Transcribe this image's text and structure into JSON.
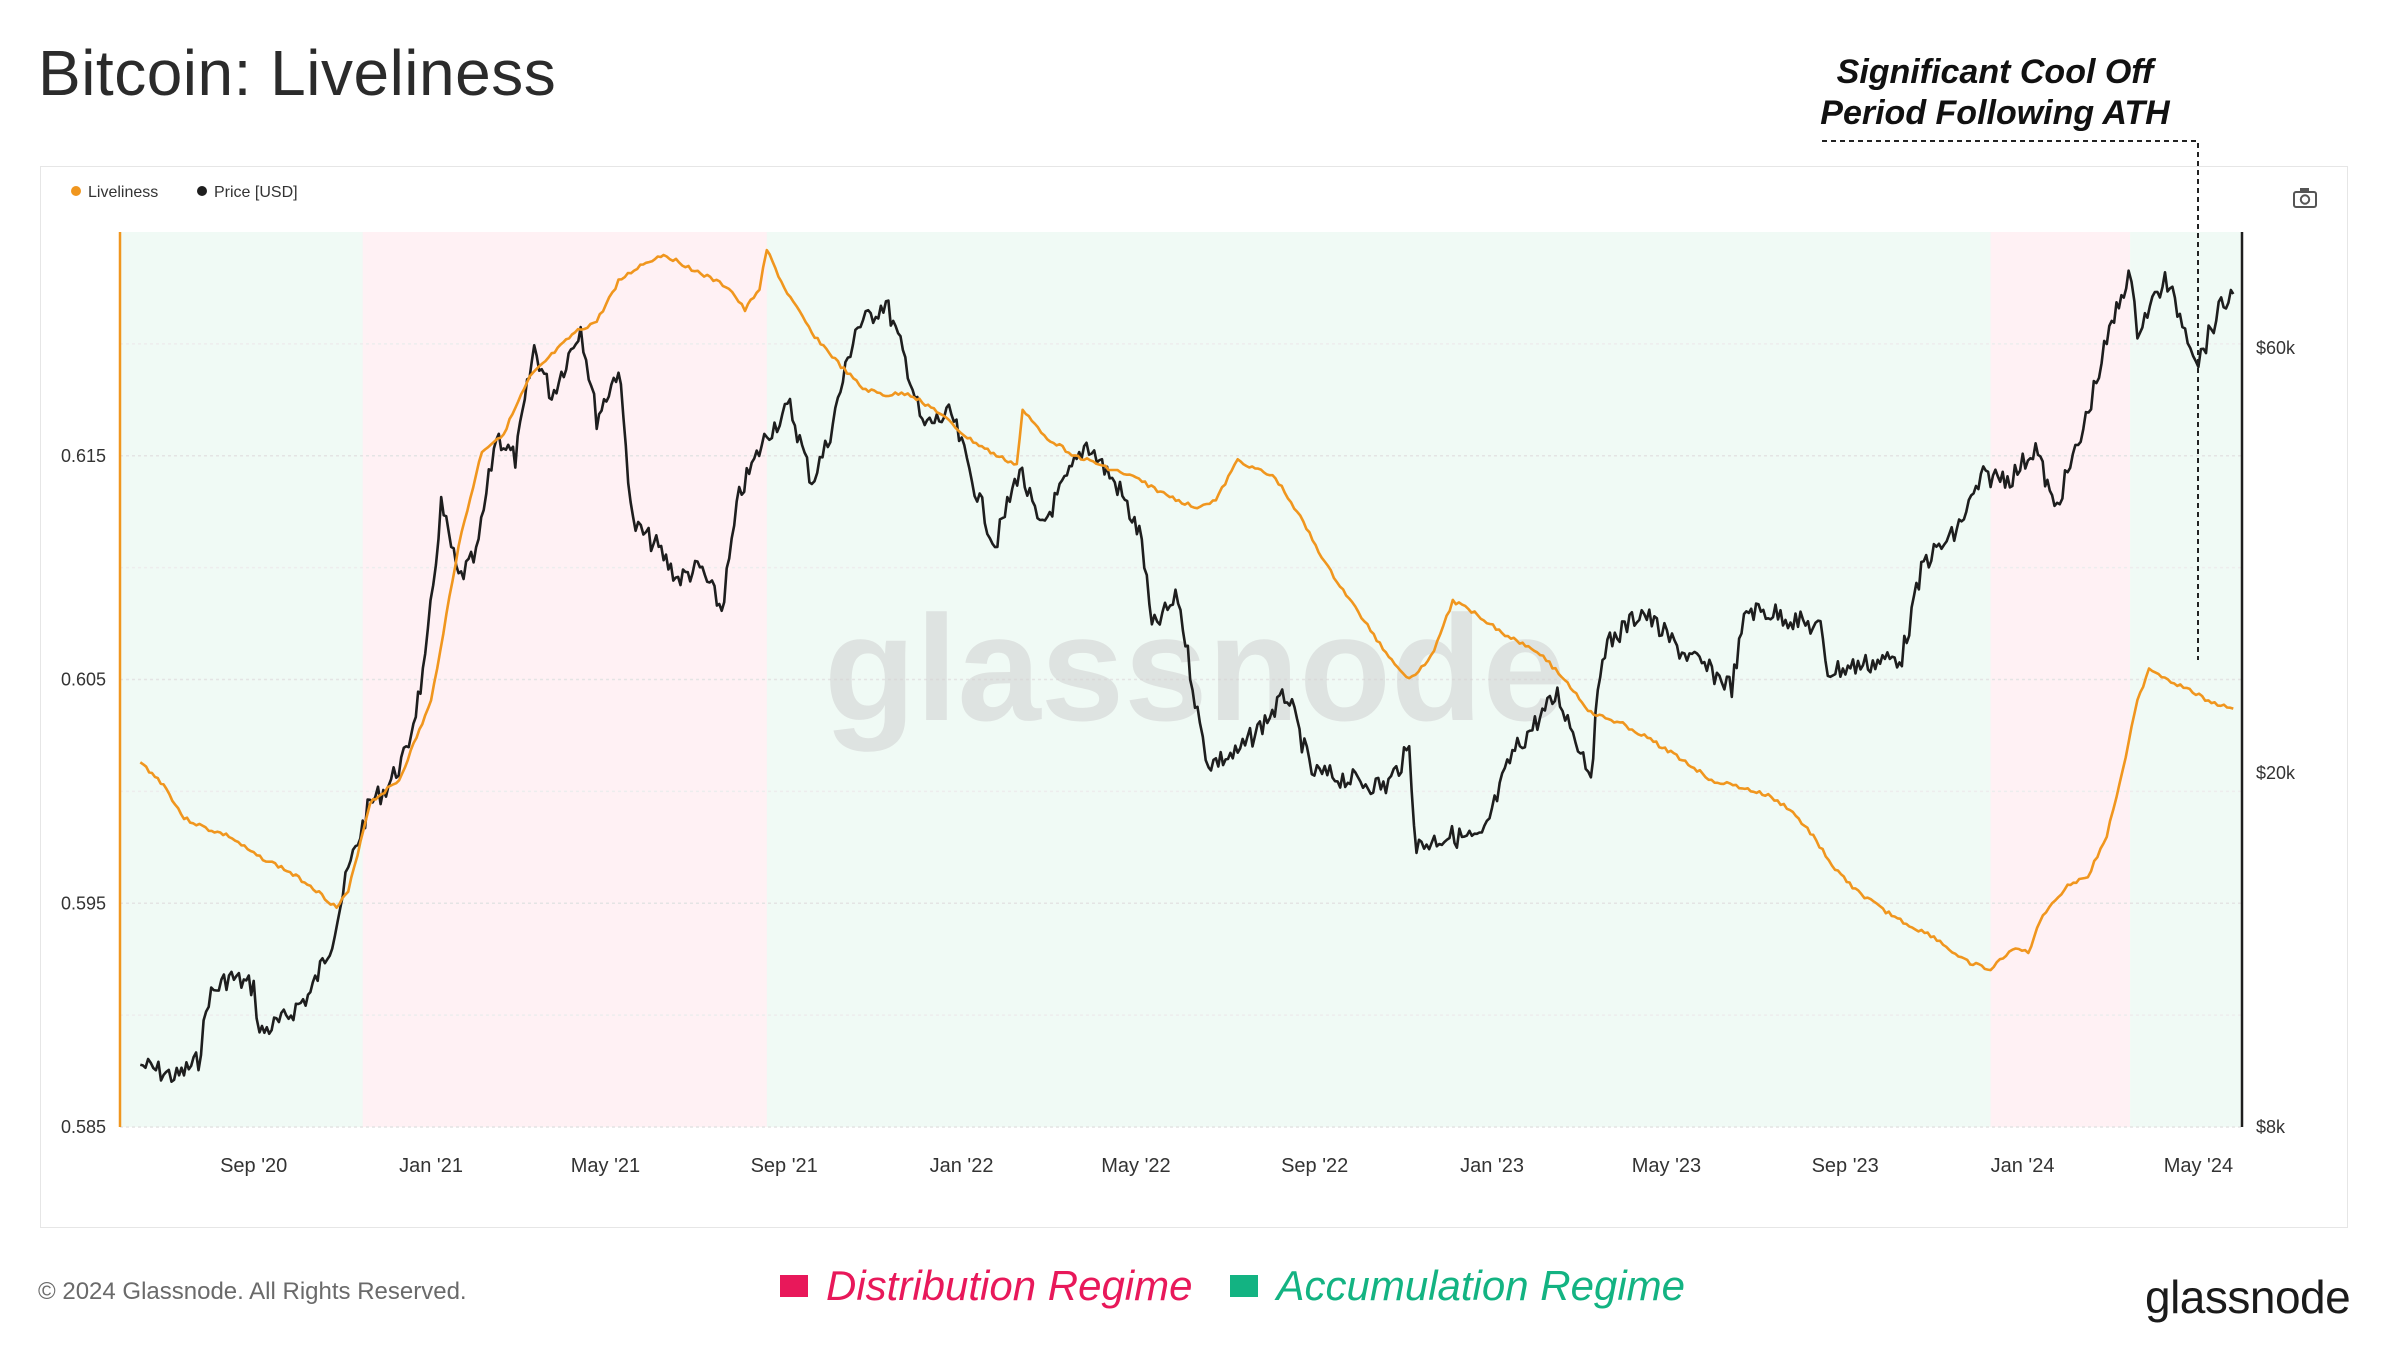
{
  "page": {
    "title": "Bitcoin: Liveliness",
    "annotation": [
      "Significant Cool Off",
      "Period Following ATH"
    ],
    "copyright": "© 2024 Glassnode. All Rights Reserved.",
    "brand": "glassnode",
    "watermark": "glassnode",
    "camera_icon": "camera-icon"
  },
  "legend_bottom": {
    "distribution": {
      "label": "Distribution Regime",
      "color": "#e8185a"
    },
    "accumulation": {
      "label": "Accumulation Regime",
      "color": "#13b382"
    }
  },
  "chart_data": {
    "type": "line",
    "title": "Bitcoin: Liveliness",
    "legend": [
      {
        "name": "Liveliness",
        "color": "#f0961e"
      },
      {
        "name": "Price [USD]",
        "color": "#1e1e1e"
      }
    ],
    "legend_position": "top-left",
    "x_tick_labels": [
      "Sep '20",
      "Jan '21",
      "May '21",
      "Sep '21",
      "Jan '22",
      "May '22",
      "Sep '22",
      "Jan '23",
      "May '23",
      "Sep '23",
      "Jan '24",
      "May '24"
    ],
    "x_range": [
      "2020-06-01",
      "2024-05-31"
    ],
    "y_left": {
      "label": "",
      "ticks": [
        0.585,
        0.595,
        0.605,
        0.615
      ],
      "tick_labels": [
        "0.585",
        "0.595",
        "0.605",
        "0.615"
      ],
      "range": [
        0.585,
        0.625
      ]
    },
    "y_right": {
      "label": "",
      "scale": "log",
      "ticks": [
        8000,
        20000,
        60000
      ],
      "tick_labels": [
        "$8k",
        "$20k",
        "$60k"
      ],
      "range": [
        8000,
        81000
      ]
    },
    "regimes": [
      {
        "type": "accumulation",
        "start": "2020-06-01",
        "end": "2020-11-15"
      },
      {
        "type": "distribution",
        "start": "2020-11-15",
        "end": "2021-08-20"
      },
      {
        "type": "accumulation",
        "start": "2021-08-20",
        "end": "2023-12-10"
      },
      {
        "type": "distribution",
        "start": "2023-12-10",
        "end": "2024-03-15"
      },
      {
        "type": "accumulation",
        "start": "2024-03-15",
        "end": "2024-05-31"
      }
    ],
    "series": [
      {
        "name": "Liveliness",
        "axis": "left",
        "points": [
          [
            "2020-06-15",
            0.6013
          ],
          [
            "2020-07-01",
            0.6003
          ],
          [
            "2020-07-15",
            0.5988
          ],
          [
            "2020-08-01",
            0.5983
          ],
          [
            "2020-08-15",
            0.598
          ],
          [
            "2020-09-01",
            0.5972
          ],
          [
            "2020-09-20",
            0.5966
          ],
          [
            "2020-10-10",
            0.5958
          ],
          [
            "2020-10-28",
            0.5948
          ],
          [
            "2020-11-05",
            0.5955
          ],
          [
            "2020-11-20",
            0.5995
          ],
          [
            "2020-12-10",
            0.6005
          ],
          [
            "2021-01-01",
            0.604
          ],
          [
            "2021-01-20",
            0.611
          ],
          [
            "2021-02-05",
            0.6152
          ],
          [
            "2021-02-20",
            0.616
          ],
          [
            "2021-03-10",
            0.6185
          ],
          [
            "2021-03-25",
            0.6195
          ],
          [
            "2021-04-10",
            0.6205
          ],
          [
            "2021-04-25",
            0.621
          ],
          [
            "2021-05-10",
            0.6228
          ],
          [
            "2021-05-25",
            0.6235
          ],
          [
            "2021-06-10",
            0.624
          ],
          [
            "2021-06-25",
            0.6235
          ],
          [
            "2021-07-10",
            0.623
          ],
          [
            "2021-07-25",
            0.6225
          ],
          [
            "2021-08-05",
            0.6215
          ],
          [
            "2021-08-15",
            0.6225
          ],
          [
            "2021-08-20",
            0.6242
          ],
          [
            "2021-09-01",
            0.6225
          ],
          [
            "2021-09-20",
            0.6205
          ],
          [
            "2021-10-10",
            0.619
          ],
          [
            "2021-10-25",
            0.618
          ],
          [
            "2021-11-10",
            0.6177
          ],
          [
            "2021-11-25",
            0.6178
          ],
          [
            "2021-12-15",
            0.617
          ],
          [
            "2022-01-05",
            0.6158
          ],
          [
            "2022-01-25",
            0.615
          ],
          [
            "2022-02-08",
            0.6146
          ],
          [
            "2022-02-12",
            0.617
          ],
          [
            "2022-03-01",
            0.6158
          ],
          [
            "2022-03-20",
            0.615
          ],
          [
            "2022-04-10",
            0.6145
          ],
          [
            "2022-05-01",
            0.614
          ],
          [
            "2022-05-20",
            0.6133
          ],
          [
            "2022-06-10",
            0.6127
          ],
          [
            "2022-06-25",
            0.613
          ],
          [
            "2022-07-10",
            0.6148
          ],
          [
            "2022-08-05",
            0.614
          ],
          [
            "2022-08-20",
            0.6125
          ],
          [
            "2022-09-10",
            0.61
          ],
          [
            "2022-10-01",
            0.608
          ],
          [
            "2022-10-20",
            0.6062
          ],
          [
            "2022-11-05",
            0.605
          ],
          [
            "2022-11-20",
            0.606
          ],
          [
            "2022-12-05",
            0.6085
          ],
          [
            "2022-12-20",
            0.608
          ],
          [
            "2023-01-10",
            0.607
          ],
          [
            "2023-02-01",
            0.6063
          ],
          [
            "2023-02-20",
            0.605
          ],
          [
            "2023-03-10",
            0.6035
          ],
          [
            "2023-04-01",
            0.603
          ],
          [
            "2023-04-20",
            0.6023
          ],
          [
            "2023-05-10",
            0.6015
          ],
          [
            "2023-06-01",
            0.6005
          ],
          [
            "2023-06-20",
            0.6002
          ],
          [
            "2023-07-10",
            0.5998
          ],
          [
            "2023-07-25",
            0.5992
          ],
          [
            "2023-08-10",
            0.598
          ],
          [
            "2023-08-25",
            0.5965
          ],
          [
            "2023-09-10",
            0.5955
          ],
          [
            "2023-09-25",
            0.5948
          ],
          [
            "2023-10-15",
            0.594
          ],
          [
            "2023-11-01",
            0.5935
          ],
          [
            "2023-11-20",
            0.5925
          ],
          [
            "2023-12-10",
            0.592
          ],
          [
            "2023-12-25",
            0.593
          ],
          [
            "2024-01-05",
            0.5928
          ],
          [
            "2024-01-15",
            0.5945
          ],
          [
            "2024-02-01",
            0.5958
          ],
          [
            "2024-02-15",
            0.5962
          ],
          [
            "2024-02-28",
            0.598
          ],
          [
            "2024-03-10",
            0.601
          ],
          [
            "2024-03-20",
            0.604
          ],
          [
            "2024-03-28",
            0.6055
          ],
          [
            "2024-04-10",
            0.605
          ],
          [
            "2024-04-25",
            0.6045
          ],
          [
            "2024-05-10",
            0.604
          ],
          [
            "2024-05-25",
            0.6037
          ]
        ]
      },
      {
        "name": "Price [USD]",
        "axis": "right",
        "points": [
          [
            "2020-06-15",
            9400
          ],
          [
            "2020-07-01",
            9200
          ],
          [
            "2020-07-10",
            9100
          ],
          [
            "2020-07-25",
            9500
          ],
          [
            "2020-08-01",
            11200
          ],
          [
            "2020-08-15",
            11800
          ],
          [
            "2020-09-01",
            11500
          ],
          [
            "2020-09-05",
            10200
          ],
          [
            "2020-09-20",
            10500
          ],
          [
            "2020-10-10",
            11300
          ],
          [
            "2020-10-25",
            13000
          ],
          [
            "2020-11-05",
            15500
          ],
          [
            "2020-11-20",
            18500
          ],
          [
            "2020-12-01",
            19200
          ],
          [
            "2020-12-15",
            21000
          ],
          [
            "2020-12-28",
            26500
          ],
          [
            "2021-01-08",
            40000
          ],
          [
            "2021-01-20",
            33000
          ],
          [
            "2021-02-01",
            35000
          ],
          [
            "2021-02-15",
            48000
          ],
          [
            "2021-02-28",
            45000
          ],
          [
            "2021-03-13",
            60000
          ],
          [
            "2021-03-25",
            53000
          ],
          [
            "2021-04-14",
            63500
          ],
          [
            "2021-04-25",
            50000
          ],
          [
            "2021-05-10",
            57000
          ],
          [
            "2021-05-20",
            38000
          ],
          [
            "2021-06-05",
            36000
          ],
          [
            "2021-06-20",
            33000
          ],
          [
            "2021-07-05",
            34000
          ],
          [
            "2021-07-20",
            30500
          ],
          [
            "2021-08-01",
            41000
          ],
          [
            "2021-08-20",
            48000
          ],
          [
            "2021-09-05",
            51500
          ],
          [
            "2021-09-20",
            42500
          ],
          [
            "2021-10-01",
            47000
          ],
          [
            "2021-10-20",
            63000
          ],
          [
            "2021-11-10",
            67500
          ],
          [
            "2021-11-25",
            57000
          ],
          [
            "2021-12-05",
            49000
          ],
          [
            "2021-12-25",
            50500
          ],
          [
            "2022-01-10",
            42000
          ],
          [
            "2022-01-24",
            36000
          ],
          [
            "2022-02-10",
            44000
          ],
          [
            "2022-02-24",
            37500
          ],
          [
            "2022-03-28",
            47000
          ],
          [
            "2022-04-20",
            41500
          ],
          [
            "2022-05-05",
            36500
          ],
          [
            "2022-05-12",
            29000
          ],
          [
            "2022-05-30",
            31500
          ],
          [
            "2022-06-14",
            22500
          ],
          [
            "2022-06-20",
            20500
          ],
          [
            "2022-07-10",
            21000
          ],
          [
            "2022-08-13",
            24500
          ],
          [
            "2022-08-30",
            20000
          ],
          [
            "2022-09-15",
            19800
          ],
          [
            "2022-10-20",
            19300
          ],
          [
            "2022-11-05",
            21200
          ],
          [
            "2022-11-10",
            16500
          ],
          [
            "2022-12-01",
            17000
          ],
          [
            "2022-12-25",
            16800
          ],
          [
            "2023-01-15",
            21000
          ],
          [
            "2023-02-15",
            24500
          ],
          [
            "2023-03-10",
            20000
          ],
          [
            "2023-03-18",
            27500
          ],
          [
            "2023-04-14",
            30400
          ],
          [
            "2023-05-10",
            27500
          ],
          [
            "2023-06-15",
            25000
          ],
          [
            "2023-06-25",
            30500
          ],
          [
            "2023-07-15",
            30200
          ],
          [
            "2023-08-15",
            29000
          ],
          [
            "2023-08-20",
            26000
          ],
          [
            "2023-09-15",
            26500
          ],
          [
            "2023-10-10",
            27000
          ],
          [
            "2023-10-25",
            34500
          ],
          [
            "2023-11-15",
            37000
          ],
          [
            "2023-12-05",
            43000
          ],
          [
            "2023-12-25",
            43000
          ],
          [
            "2024-01-10",
            46500
          ],
          [
            "2024-01-23",
            39500
          ],
          [
            "2024-02-10",
            47500
          ],
          [
            "2024-02-28",
            61000
          ],
          [
            "2024-03-14",
            73000
          ],
          [
            "2024-03-20",
            63000
          ],
          [
            "2024-04-08",
            71500
          ],
          [
            "2024-04-20",
            64500
          ],
          [
            "2024-05-01",
            58000
          ],
          [
            "2024-05-15",
            66000
          ],
          [
            "2024-05-25",
            69000
          ]
        ]
      }
    ]
  }
}
